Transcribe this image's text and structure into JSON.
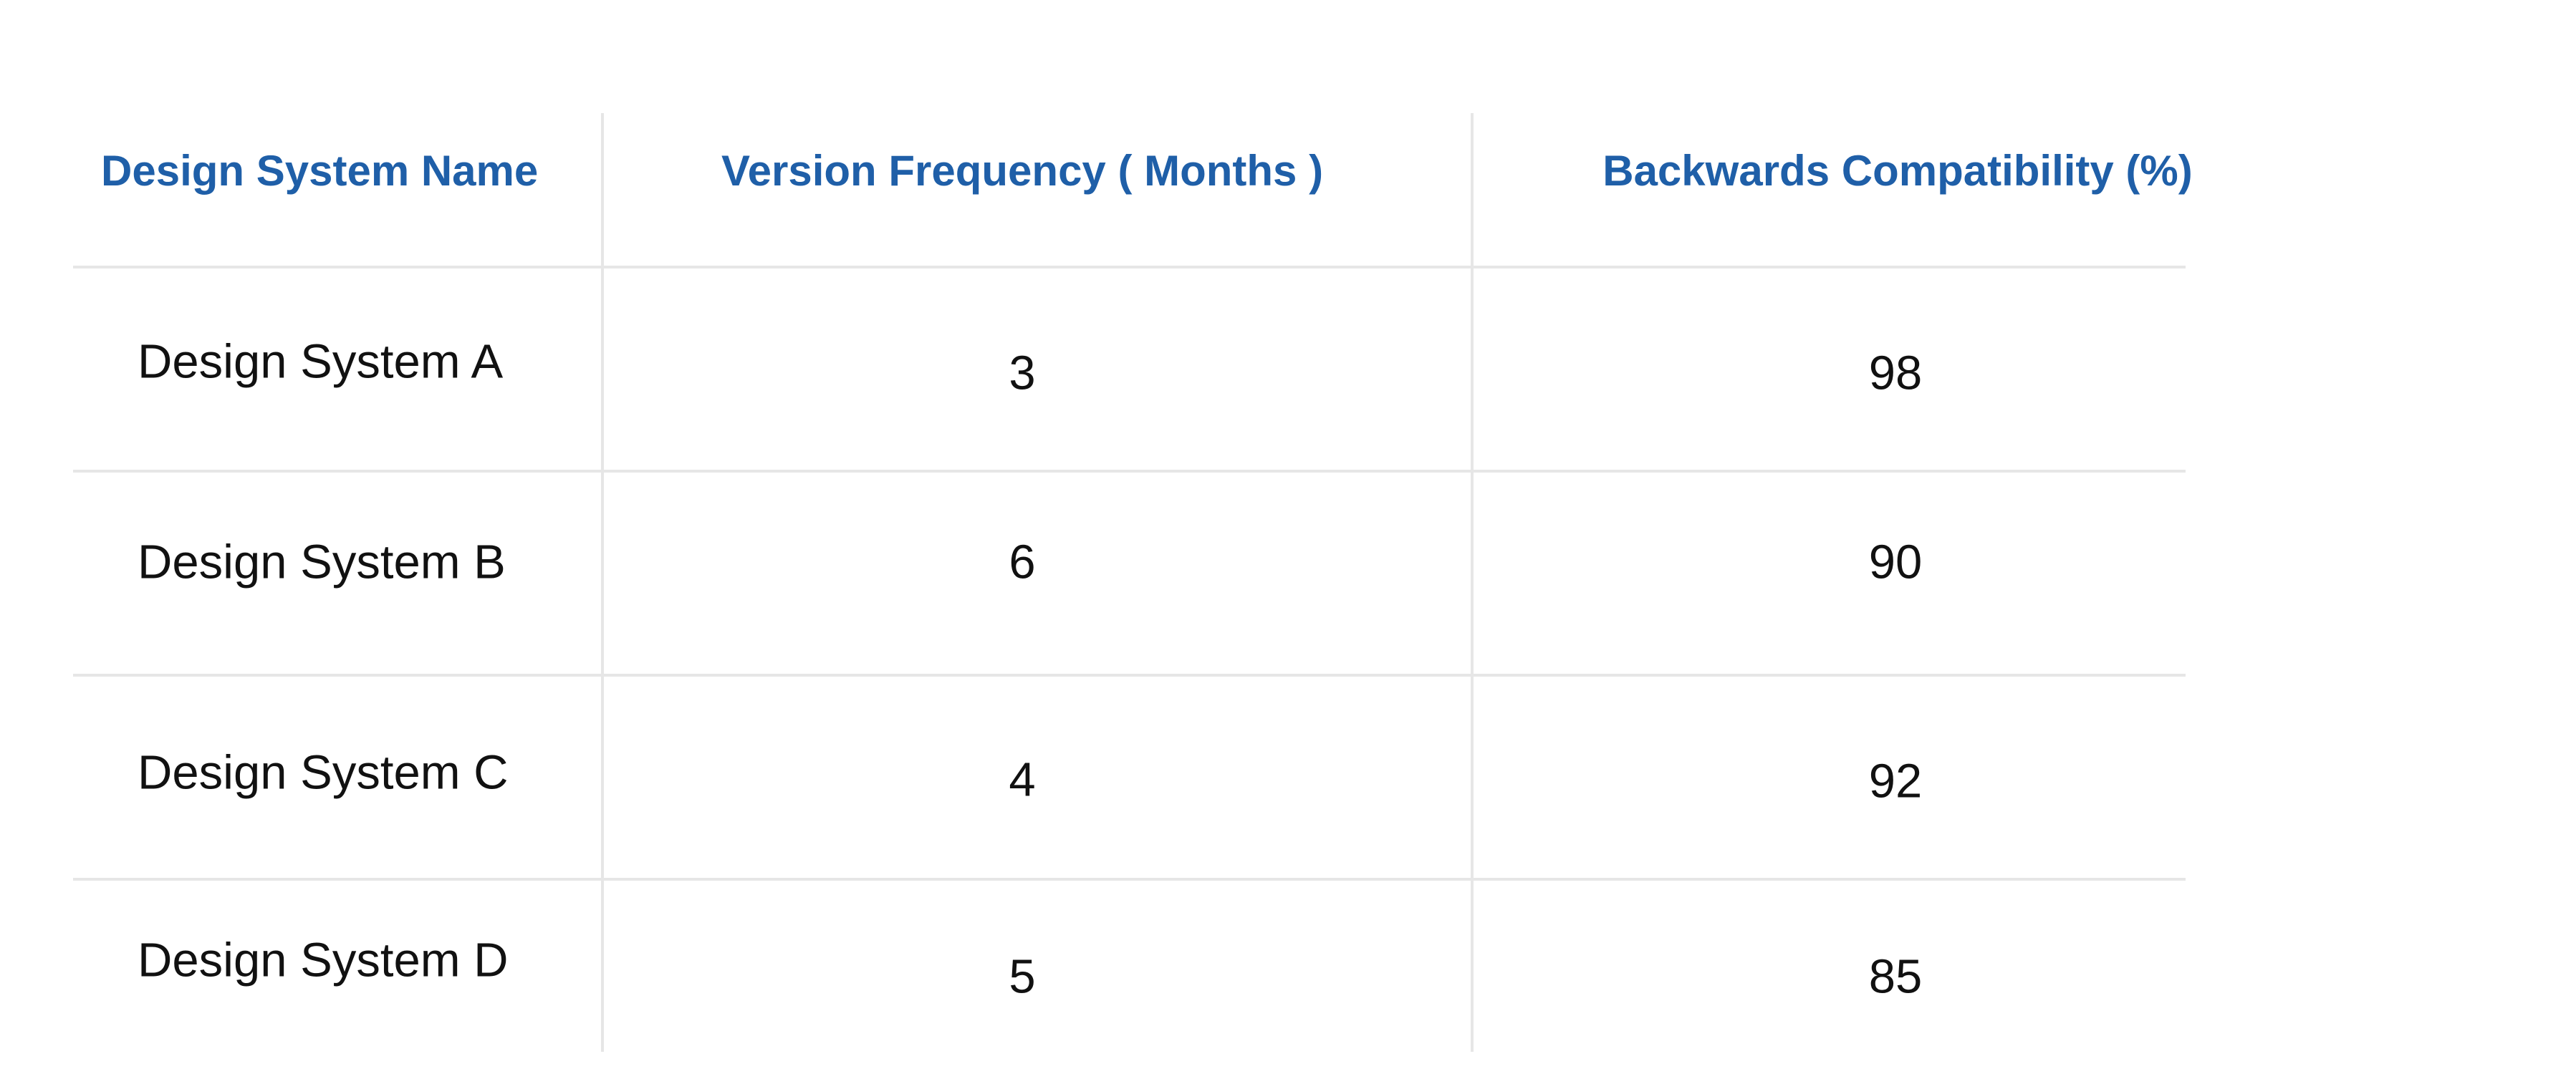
{
  "table": {
    "header": [
      "Design System Name",
      "Version Frequency ( Months )",
      "Backwards Compatibility (%)"
    ],
    "rows": [
      [
        "Design System A",
        3,
        98
      ],
      [
        "Design System B",
        6,
        90
      ],
      [
        "Design System C",
        4,
        92
      ],
      [
        "Design System D",
        5,
        85
      ]
    ]
  }
}
